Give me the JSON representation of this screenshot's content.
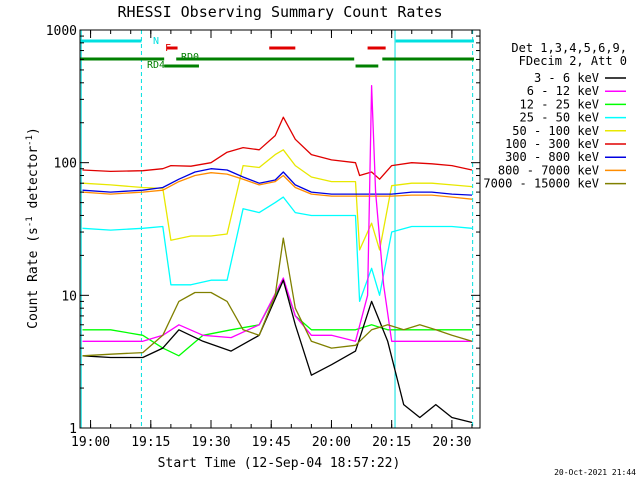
{
  "chart_data": {
    "type": "line",
    "title": "RHESSI Observing Summary Count Rates",
    "xlabel": "Start Time (12-Sep-04 18:57:22)",
    "ylabel": "Count Rate (s^-1 detector^-1)",
    "ylabel_main": "Count Rate (s",
    "ylabel_sup1": "-1",
    "ylabel_mid": " detector",
    "ylabel_sup2": "-1",
    "ylabel_end": ")",
    "yscale": "log",
    "ylim": [
      1,
      1000
    ],
    "xlim": [
      "18:57:22",
      "20:37:00"
    ],
    "x_ticks": [
      "19:00",
      "19:15",
      "19:30",
      "19:45",
      "20:00",
      "20:15",
      "20:30"
    ],
    "y_ticks": [
      "1",
      "10",
      "100",
      "1000"
    ],
    "legend_header": [
      "Det 1,3,4,5,6,9,",
      "FDecim 2, Att 0"
    ],
    "legend_position": "right",
    "timestamp": "20-Oct-2021 21:44",
    "flags": [
      {
        "label": "N",
        "color": "#00e0e0",
        "segments": [
          [
            "18:57:22",
            "19:12:40"
          ],
          [
            "20:16:00",
            "20:35:30"
          ]
        ]
      },
      {
        "label": "F",
        "color": "#e00000",
        "segments": [
          [
            "19:19:00",
            "19:21:40"
          ],
          [
            "19:44:30",
            "19:51:00"
          ],
          [
            "20:09:00",
            "20:13:30"
          ]
        ]
      },
      {
        "label": "RD0",
        "color": "#008000",
        "segments": [
          [
            "18:57:22",
            "19:18:20"
          ],
          [
            "19:21:20",
            "20:05:40"
          ],
          [
            "20:12:40",
            "20:35:30"
          ]
        ]
      },
      {
        "label": "RD4",
        "color": "#008000",
        "segments": [
          [
            "19:18:20",
            "19:27:00"
          ],
          [
            "20:06:00",
            "20:11:40"
          ]
        ]
      }
    ],
    "vlines": [
      {
        "time": "18:57:40",
        "color": "#00e0e0",
        "style": "solid"
      },
      {
        "time": "19:12:40",
        "color": "#00e0e0",
        "style": "dashed"
      },
      {
        "time": "20:15:50",
        "color": "#00e0e0",
        "style": "solid"
      },
      {
        "time": "20:35:10",
        "color": "#00e0e0",
        "style": "dashed"
      }
    ],
    "series": [
      {
        "name": "3 - 6 keV",
        "color": "#000000",
        "x": [
          "18:58",
          "19:05",
          "19:13",
          "19:18",
          "19:22",
          "19:28",
          "19:35",
          "19:42",
          "19:48",
          "19:51",
          "19:55",
          "20:00",
          "20:06",
          "20:10",
          "20:14",
          "20:18",
          "20:22",
          "20:26",
          "20:30",
          "20:35"
        ],
        "y": [
          3.5,
          3.4,
          3.4,
          4.0,
          5.5,
          4.5,
          3.8,
          5.0,
          13.0,
          6.0,
          2.5,
          3.0,
          3.8,
          9.0,
          4.5,
          1.5,
          1.2,
          1.5,
          1.2,
          1.1
        ]
      },
      {
        "name": "6 - 12 keV",
        "color": "#ff00ff",
        "x": [
          "18:58",
          "19:05",
          "19:13",
          "19:18",
          "19:22",
          "19:28",
          "19:35",
          "19:42",
          "19:48",
          "19:51",
          "19:55",
          "20:00",
          "20:06",
          "20:09",
          "20:10",
          "20:11",
          "20:13",
          "20:15",
          "20:18",
          "20:22",
          "20:26",
          "20:30",
          "20:35"
        ],
        "y": [
          4.5,
          4.5,
          4.5,
          5.0,
          6.0,
          5.0,
          4.8,
          6.0,
          13.5,
          7.0,
          5.0,
          5.0,
          4.5,
          10.0,
          380.0,
          60.0,
          12.0,
          4.5,
          4.5,
          4.5,
          4.5,
          4.5,
          4.5
        ]
      },
      {
        "name": "12 - 25 keV",
        "color": "#00ff00",
        "x": [
          "18:58",
          "19:05",
          "19:13",
          "19:18",
          "19:22",
          "19:28",
          "19:35",
          "19:42",
          "19:48",
          "19:51",
          "19:55",
          "20:00",
          "20:06",
          "20:10",
          "20:14",
          "20:18",
          "20:22",
          "20:26",
          "20:30",
          "20:35"
        ],
        "y": [
          5.5,
          5.5,
          5.0,
          4.0,
          3.5,
          5.0,
          5.5,
          6.0,
          13.0,
          7.0,
          5.5,
          5.5,
          5.5,
          6.0,
          5.5,
          5.5,
          5.5,
          5.5,
          5.5,
          5.5
        ]
      },
      {
        "name": "25 - 50 keV",
        "color": "#00ffff",
        "x": [
          "18:58",
          "19:05",
          "19:13",
          "19:18",
          "19:20",
          "19:25",
          "19:30",
          "19:34",
          "19:38",
          "19:42",
          "19:46",
          "19:48",
          "19:51",
          "19:55",
          "20:00",
          "20:06",
          "20:07",
          "20:10",
          "20:12",
          "20:15",
          "20:20",
          "20:25",
          "20:30",
          "20:35"
        ],
        "y": [
          32,
          31,
          32,
          33,
          12,
          12,
          13,
          13,
          45,
          42,
          50,
          55,
          42,
          40,
          40,
          40,
          9,
          16,
          10,
          30,
          33,
          33,
          33,
          32
        ]
      },
      {
        "name": "50 - 100 keV",
        "color": "#e8e800",
        "x": [
          "18:58",
          "19:05",
          "19:13",
          "19:18",
          "19:20",
          "19:25",
          "19:30",
          "19:34",
          "19:38",
          "19:42",
          "19:46",
          "19:48",
          "19:51",
          "19:55",
          "20:00",
          "20:06",
          "20:07",
          "20:10",
          "20:12",
          "20:15",
          "20:20",
          "20:25",
          "20:30",
          "20:35"
        ],
        "y": [
          70,
          68,
          65,
          64,
          26,
          28,
          28,
          29,
          95,
          92,
          115,
          125,
          95,
          78,
          72,
          72,
          22,
          35,
          22,
          67,
          70,
          70,
          68,
          66
        ]
      },
      {
        "name": "100 - 300 keV",
        "color": "#e00000",
        "x": [
          "18:58",
          "19:05",
          "19:13",
          "19:18",
          "19:20",
          "19:25",
          "19:30",
          "19:34",
          "19:38",
          "19:42",
          "19:46",
          "19:48",
          "19:51",
          "19:55",
          "20:00",
          "20:06",
          "20:07",
          "20:10",
          "20:12",
          "20:15",
          "20:20",
          "20:25",
          "20:30",
          "20:35"
        ],
        "y": [
          88,
          86,
          87,
          90,
          95,
          94,
          100,
          120,
          130,
          125,
          160,
          220,
          150,
          115,
          105,
          100,
          80,
          85,
          75,
          95,
          100,
          98,
          95,
          88
        ]
      },
      {
        "name": "300 - 800 keV",
        "color": "#0000e0",
        "x": [
          "18:58",
          "19:05",
          "19:13",
          "19:18",
          "19:22",
          "19:26",
          "19:30",
          "19:34",
          "19:38",
          "19:42",
          "19:46",
          "19:48",
          "19:51",
          "19:55",
          "20:00",
          "20:06",
          "20:10",
          "20:15",
          "20:20",
          "20:25",
          "20:30",
          "20:35"
        ],
        "y": [
          62,
          60,
          62,
          65,
          75,
          85,
          90,
          88,
          78,
          70,
          74,
          85,
          68,
          60,
          58,
          58,
          58,
          58,
          60,
          60,
          58,
          57
        ]
      },
      {
        "name": "800 - 7000 keV",
        "color": "#ff8c00",
        "x": [
          "18:58",
          "19:05",
          "19:13",
          "19:18",
          "19:22",
          "19:26",
          "19:30",
          "19:34",
          "19:38",
          "19:42",
          "19:46",
          "19:48",
          "19:51",
          "19:55",
          "20:00",
          "20:06",
          "20:10",
          "20:15",
          "20:20",
          "20:25",
          "20:30",
          "20:35"
        ],
        "y": [
          60,
          58,
          60,
          62,
          72,
          80,
          84,
          82,
          75,
          68,
          72,
          80,
          65,
          58,
          56,
          56,
          56,
          56,
          57,
          57,
          55,
          53
        ]
      },
      {
        "name": "7000 - 15000 keV",
        "color": "#808000",
        "x": [
          "18:58",
          "19:05",
          "19:13",
          "19:18",
          "19:22",
          "19:26",
          "19:30",
          "19:34",
          "19:38",
          "19:42",
          "19:46",
          "19:48",
          "19:51",
          "19:55",
          "20:00",
          "20:06",
          "20:10",
          "20:14",
          "20:18",
          "20:22",
          "20:26",
          "20:30",
          "20:35"
        ],
        "y": [
          3.5,
          3.6,
          3.7,
          5.0,
          9.0,
          10.5,
          10.5,
          9.0,
          5.5,
          5.0,
          10.0,
          27.0,
          8.0,
          4.5,
          4.0,
          4.2,
          5.5,
          6.0,
          5.5,
          6.0,
          5.5,
          5.0,
          4.5
        ]
      }
    ]
  }
}
